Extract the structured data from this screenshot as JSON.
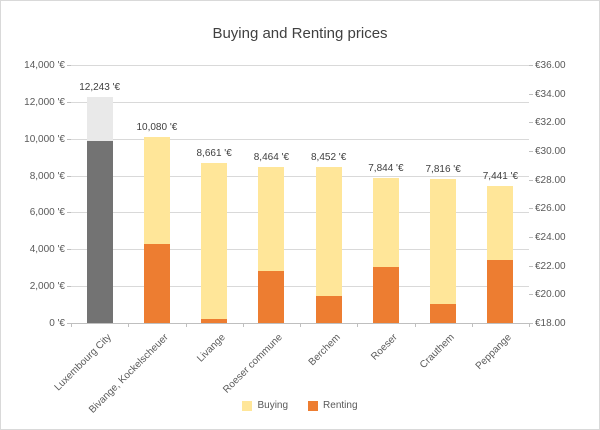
{
  "title": "Buying and Renting prices",
  "legend": {
    "items": [
      {
        "label": "Buying",
        "color": "#ffe699"
      },
      {
        "label": "Renting",
        "color": "#ed7d31"
      }
    ]
  },
  "chart_data": {
    "type": "bar",
    "title": "Buying and Renting prices",
    "categories": [
      "Luxembourg City",
      "Bivange, Kockelscheuer",
      "Livange",
      "Roeser commune",
      "Berchem",
      "Roeser",
      "Crauthem",
      "Peppange"
    ],
    "series": [
      {
        "name": "Buying",
        "axis": "left",
        "color": "#ffe699",
        "values": [
          12243,
          10080,
          8661,
          8464,
          8452,
          7844,
          7816,
          7441
        ]
      },
      {
        "name": "Renting",
        "axis": "right",
        "color": "#ed7d31",
        "values": [
          null,
          23.5,
          18.3,
          21.6,
          19.9,
          21.9,
          19.3,
          22.4
        ]
      }
    ],
    "data_labels": [
      "12,243 '€",
      "10,080 '€",
      "8,661 '€",
      "8,464 '€",
      "8,452 '€",
      "7,844 '€",
      "7,816 '€",
      "7,441 '€"
    ],
    "highlight": {
      "category": "Luxembourg City",
      "dark_color": "#737373",
      "light_color": "#e9e9e9",
      "dark_top_value": 9900
    },
    "left_axis": {
      "min": 0,
      "max": 14000,
      "step": 2000,
      "tick_labels": [
        "0 '€",
        "2,000 '€",
        "4,000 '€",
        "6,000 '€",
        "8,000 '€",
        "10,000 '€",
        "12,000 '€",
        "14,000 '€"
      ]
    },
    "right_axis": {
      "min": 18,
      "max": 36,
      "step": 2,
      "tick_labels": [
        "€18.00",
        "€20.00",
        "€22.00",
        "€24.00",
        "€26.00",
        "€28.00",
        "€30.00",
        "€32.00",
        "€34.00",
        "€36.00"
      ]
    },
    "gridlines": true,
    "legend_position": "bottom"
  }
}
